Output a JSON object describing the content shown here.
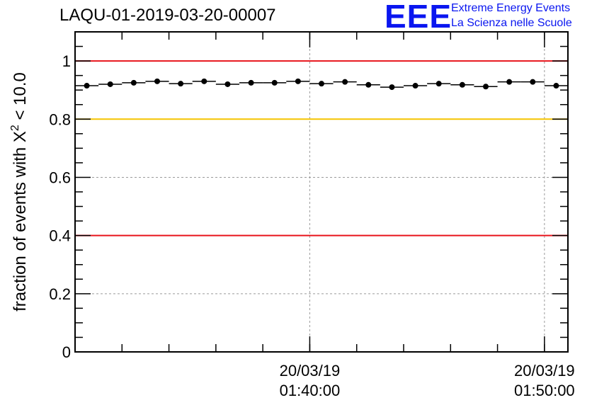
{
  "header": {
    "run_title": "LAQU-01-2019-03-20-00007",
    "logo_letters": "EEE",
    "logo_line1": "Extreme Energy Events",
    "logo_line2": "La Scienza nelle Scuole"
  },
  "chart_data": {
    "type": "scatter",
    "title": "LAQU-01-2019-03-20-00007",
    "ylabel": "fraction of events with χ² < 10.0",
    "ylabel_main": "fraction of events with X",
    "ylabel_sup": "2",
    "ylabel_tail": " < 10.0",
    "xlabel": "",
    "ylim": [
      0,
      1.1
    ],
    "xlim_minutes": [
      0,
      21
    ],
    "yticks": [
      "0",
      "0.2",
      "0.4",
      "0.6",
      "0.8",
      "1"
    ],
    "xticks": [
      {
        "minute": 10,
        "date": "20/03/19",
        "time": "01:40:00"
      },
      {
        "minute": 20,
        "date": "20/03/19",
        "time": "01:50:00"
      }
    ],
    "grid": true,
    "reference_lines": [
      {
        "y": 1.0,
        "color": "#e8141c"
      },
      {
        "y": 0.8,
        "color": "#f5c400"
      },
      {
        "y": 0.4,
        "color": "#e8141c"
      }
    ],
    "points": [
      {
        "x": 0.5,
        "y": 0.915
      },
      {
        "x": 1.5,
        "y": 0.92
      },
      {
        "x": 2.5,
        "y": 0.925
      },
      {
        "x": 3.5,
        "y": 0.93
      },
      {
        "x": 4.5,
        "y": 0.922
      },
      {
        "x": 5.5,
        "y": 0.93
      },
      {
        "x": 6.5,
        "y": 0.92
      },
      {
        "x": 7.5,
        "y": 0.925
      },
      {
        "x": 8.5,
        "y": 0.925
      },
      {
        "x": 9.5,
        "y": 0.93
      },
      {
        "x": 10.5,
        "y": 0.922
      },
      {
        "x": 11.5,
        "y": 0.928
      },
      {
        "x": 12.5,
        "y": 0.918
      },
      {
        "x": 13.5,
        "y": 0.91
      },
      {
        "x": 14.5,
        "y": 0.915
      },
      {
        "x": 15.5,
        "y": 0.922
      },
      {
        "x": 16.5,
        "y": 0.918
      },
      {
        "x": 17.5,
        "y": 0.912
      },
      {
        "x": 18.5,
        "y": 0.928
      },
      {
        "x": 19.5,
        "y": 0.928
      },
      {
        "x": 20.5,
        "y": 0.915
      }
    ],
    "point_color": "#000000"
  }
}
